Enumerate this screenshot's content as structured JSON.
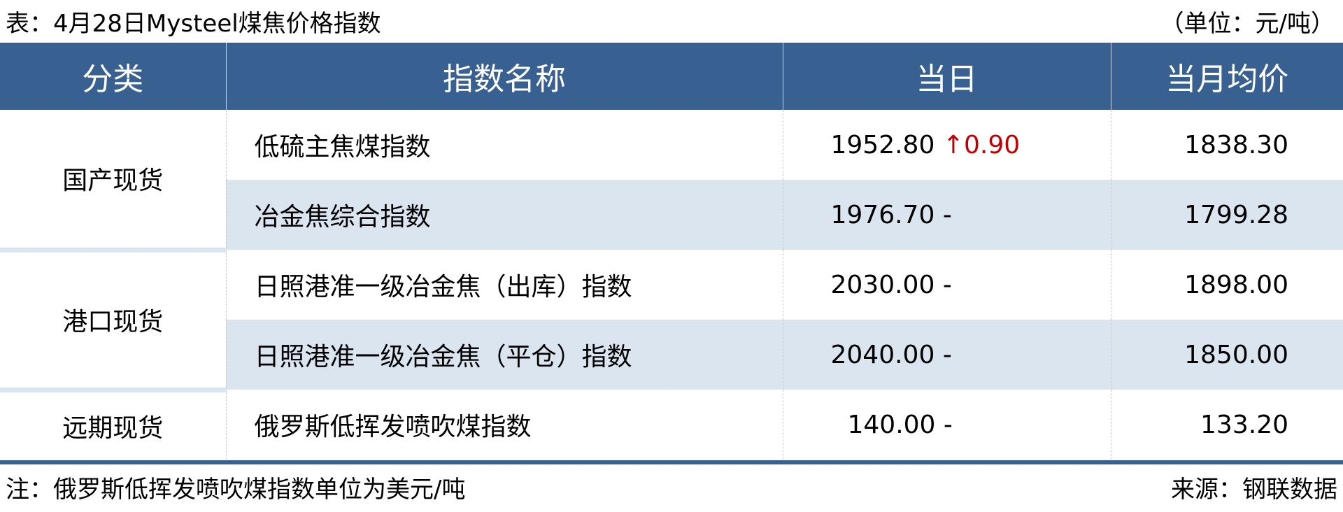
{
  "title": "表：4月28日Mysteel煤焦价格指数",
  "unit": "（单位：元/吨）",
  "headers": [
    "分类",
    "指数名称",
    "当日",
    "当月均价"
  ],
  "rows": [
    {
      "category": "国产现货",
      "name": "低硫主焦煤指数",
      "day": "1952.80",
      "change_arrow": "↑",
      "change": "0.90",
      "avg": "1838.30"
    },
    {
      "name": "冶金焦综合指数",
      "day": "1976.70",
      "change": "-",
      "avg": "1799.28"
    },
    {
      "category": "港口现货",
      "name": "日照港准一级冶金焦（出库）指数",
      "day": "2030.00",
      "change": "-",
      "avg": "1898.00"
    },
    {
      "name": "日照港准一级冶金焦（平仓）指数",
      "day": "2040.00",
      "change": "-",
      "avg": "1850.00"
    },
    {
      "category": "远期现货",
      "name": "俄罗斯低挥发喷吹煤指数",
      "day": "140.00",
      "change": "-",
      "avg": "133.20"
    }
  ],
  "note": "注：俄罗斯低挥发喷吹煤指数单位为美元/吨",
  "source": "来源：钢联数据",
  "colors": {
    "header": "#386090",
    "alt_row": "#dbe5f0",
    "up": "#c00000"
  }
}
